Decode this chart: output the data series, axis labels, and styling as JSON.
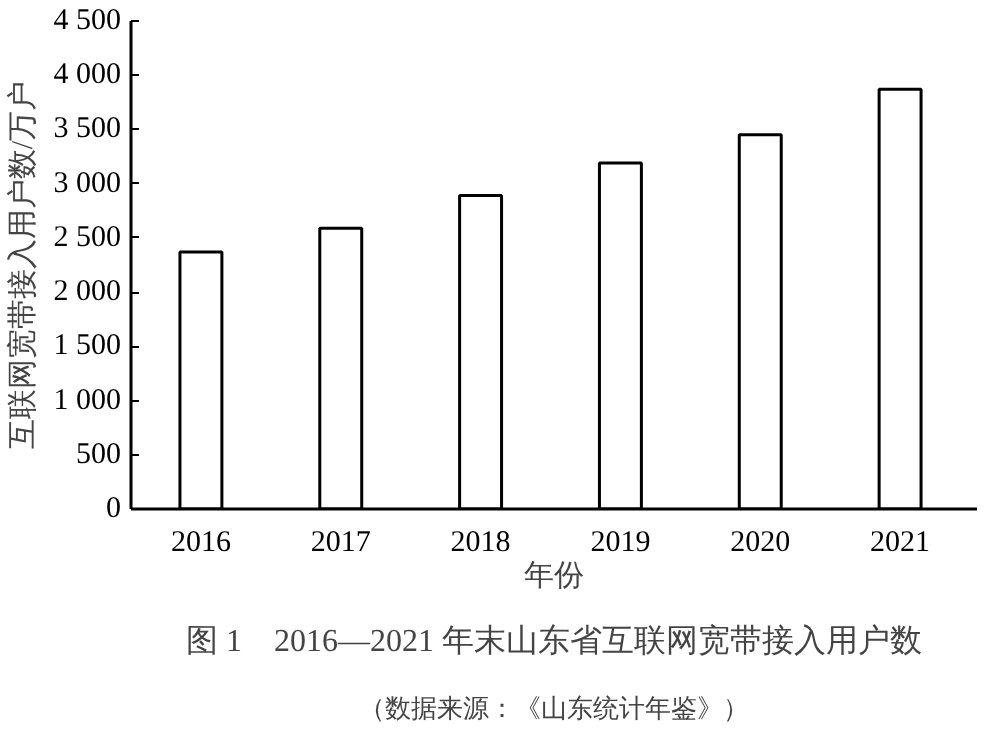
{
  "chart_data": {
    "type": "bar",
    "title": "图 1　2016—2021 年末山东省互联网宽带接入用户数",
    "annotations": [
      "（数据来源：《山东统计年鉴》）"
    ],
    "xlabel": "年份",
    "ylabel": "互联网宽带接入用户数/万户",
    "categories": [
      "2016",
      "2017",
      "2018",
      "2019",
      "2020",
      "2021"
    ],
    "values": [
      2370,
      2590,
      2890,
      3190,
      3450,
      3870
    ],
    "color": "#ffffff",
    "ylim": [
      0,
      4500
    ],
    "yticks": [
      0,
      500,
      {
        "value": 1000,
        "label": "1 000"
      },
      {
        "value": 1500,
        "label": "1 500"
      },
      {
        "value": 2000,
        "label": "2 000"
      },
      {
        "value": 2500,
        "label": "2 500"
      },
      {
        "value": 3000,
        "label": "3 000"
      },
      {
        "value": 3500,
        "label": "3 500"
      },
      {
        "value": 4000,
        "label": "4 000"
      },
      {
        "value": 4500,
        "label": "4 500"
      }
    ],
    "grid": false
  }
}
